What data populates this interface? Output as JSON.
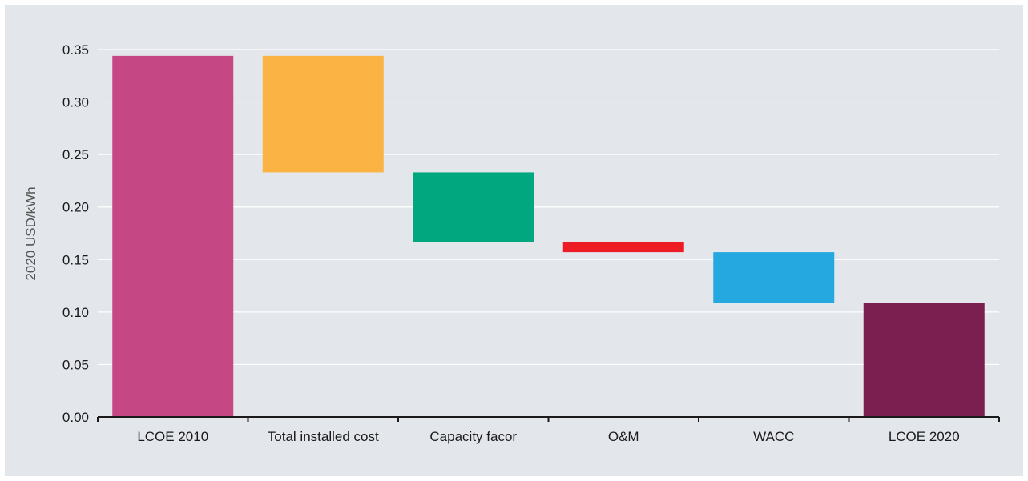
{
  "chart_data": {
    "type": "bar",
    "subtype": "waterfall",
    "title": "",
    "xlabel": "",
    "ylabel": "2020 USD/kWh",
    "ylim": [
      0,
      0.35
    ],
    "yticks": [
      "0.00",
      "0.05",
      "0.10",
      "0.15",
      "0.20",
      "0.25",
      "0.30",
      "0.35"
    ],
    "grid": true,
    "legend": "none",
    "categories": [
      "LCOE 2010",
      "Total installed cost",
      "Capacity facor",
      "O&M",
      "WACC",
      "LCOE 2020"
    ],
    "bars": [
      {
        "label": "LCOE 2010",
        "start": 0,
        "end": 0.344,
        "color": "#c54884"
      },
      {
        "label": "Total installed cost",
        "start": 0.344,
        "end": 0.233,
        "color": "#fbb443"
      },
      {
        "label": "Capacity facor",
        "start": 0.233,
        "end": 0.167,
        "color": "#00a77f"
      },
      {
        "label": "O&M",
        "start": 0.167,
        "end": 0.157,
        "color": "#ed1c24"
      },
      {
        "label": "WACC",
        "start": 0.157,
        "end": 0.109,
        "color": "#25a8e0"
      },
      {
        "label": "LCOE 2020",
        "start": 0,
        "end": 0.109,
        "color": "#7b1f51"
      }
    ],
    "colors": {
      "background": "#e3e6eb",
      "grid": "#ffffff",
      "axis": "#1a1a1a"
    }
  }
}
